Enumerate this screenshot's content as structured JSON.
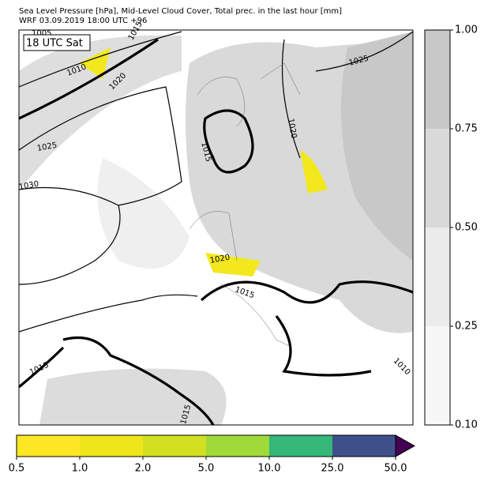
{
  "header": {
    "title": "Sea Level Pressure [hPa], Mid-Level Cloud Cover, Total prec. in the last hour [mm]",
    "subtitle": "WRF 03.09.2019 18:00 UTC +96"
  },
  "time_label": "18 UTC Sat",
  "isobar_labels": [
    "1005",
    "1015",
    "1010",
    "1020",
    "1025",
    "1030",
    "1025",
    "1020",
    "1015",
    "1020",
    "1015",
    "1015",
    "1015",
    "1010"
  ],
  "cloud_colorbar": {
    "colors": [
      "#f7f7f7",
      "#ebebeb",
      "#d9d9d9",
      "#c8c8c8"
    ],
    "ticks": [
      {
        "value": 0.1,
        "label": "0.10"
      },
      {
        "value": 0.25,
        "label": "0.25"
      },
      {
        "value": 0.5,
        "label": "0.50"
      },
      {
        "value": 0.75,
        "label": "0.75"
      },
      {
        "value": 1,
        "label": "1.00"
      }
    ]
  },
  "precip_colorbar": {
    "colors": [
      "#fde725",
      "#eee51b",
      "#d2e021",
      "#a0da39",
      "#35b779",
      "#3e4f8a"
    ],
    "extend_color": "#440154",
    "ticks": [
      0.5,
      {
        "value": 1,
        "label": "1.0"
      },
      {
        "value": 2,
        "label": "2.0"
      },
      {
        "value": 5,
        "label": "5.0"
      },
      {
        "value": 10,
        "label": "10.0"
      },
      {
        "value": 25,
        "label": "25.0"
      },
      {
        "value": 50,
        "label": "50.0"
      }
    ]
  }
}
